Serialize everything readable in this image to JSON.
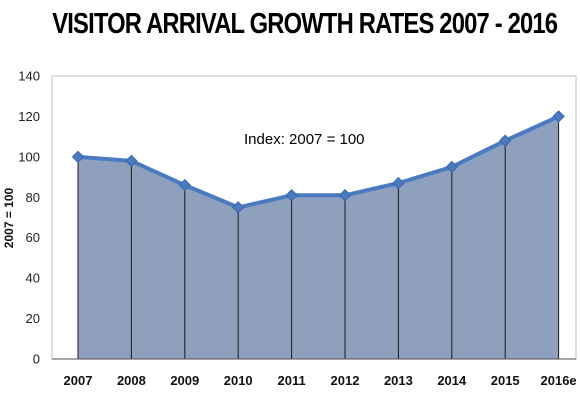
{
  "chart_data": {
    "type": "area",
    "title": "VISITOR ARRIVAL GROWTH RATES 2007 - 2016",
    "xlabel": "",
    "ylabel": "2007 = 100",
    "annotation": "Index: 2007 = 100",
    "categories": [
      "2007",
      "2008",
      "2009",
      "2010",
      "2011",
      "2012",
      "2013",
      "2014",
      "2015",
      "2016e"
    ],
    "series": [
      {
        "values": [
          100,
          98,
          86,
          75,
          81,
          81,
          87,
          95,
          108,
          120
        ]
      }
    ],
    "ylim": [
      0,
      140
    ],
    "yticks": [
      0,
      20,
      40,
      60,
      80,
      100,
      120,
      140
    ],
    "grid": "vertical lines at categories",
    "legend": "none",
    "colors": {
      "fill": "#8ea0bd",
      "line": "#4a7abf",
      "marker": "#4a7abf",
      "gridline": "#1a1a1a"
    }
  }
}
